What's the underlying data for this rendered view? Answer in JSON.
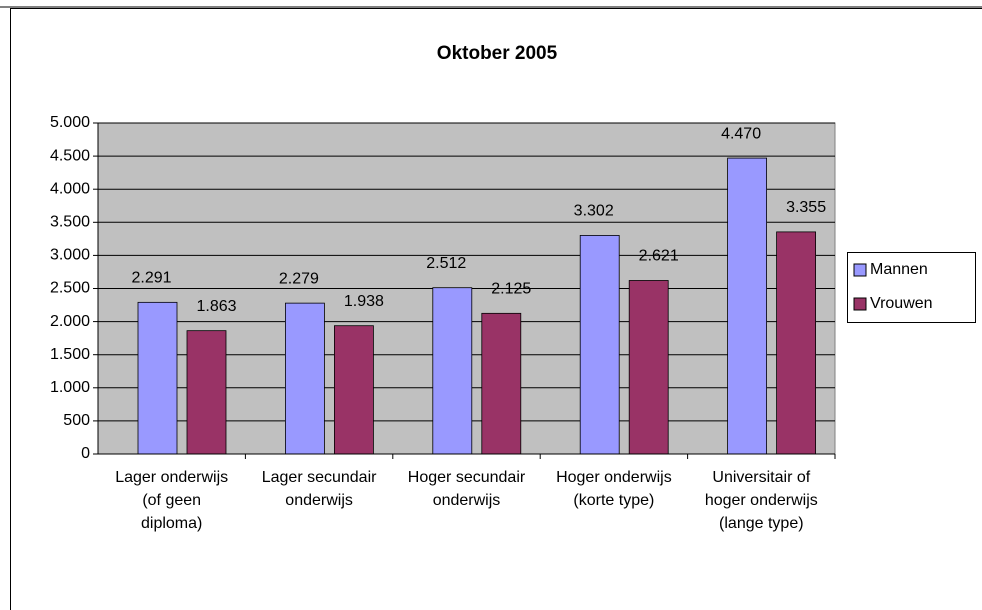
{
  "chart_data": {
    "type": "bar",
    "title": "Oktober 2005",
    "categories": [
      "Lager onderwijs (of geen diploma)",
      "Lager secundair onderwijs",
      "Hoger secundair onderwijs",
      "Hoger onderwijs (korte type)",
      "Universitair of hoger onderwijs (lange type)"
    ],
    "series": [
      {
        "name": "Mannen",
        "color": "#9999ff",
        "values": [
          2291,
          2279,
          2512,
          3302,
          4470
        ],
        "value_labels": [
          "2.291",
          "2.279",
          "2.512",
          "3.302",
          "4.470"
        ]
      },
      {
        "name": "Vrouwen",
        "color": "#993366",
        "values": [
          1863,
          1938,
          2125,
          2621,
          3355
        ],
        "value_labels": [
          "1.863",
          "1.938",
          "2.125",
          "2.621",
          "3.355"
        ]
      }
    ],
    "ylim": [
      0,
      5000
    ],
    "yticks": [
      {
        "value": 0,
        "label": "0"
      },
      {
        "value": 500,
        "label": "500"
      },
      {
        "value": 1000,
        "label": "1.000"
      },
      {
        "value": 1500,
        "label": "1.500"
      },
      {
        "value": 2000,
        "label": "2.000"
      },
      {
        "value": 2500,
        "label": "2.500"
      },
      {
        "value": 3000,
        "label": "3.000"
      },
      {
        "value": 3500,
        "label": "3.500"
      },
      {
        "value": 4000,
        "label": "4.000"
      },
      {
        "value": 4500,
        "label": "4.500"
      },
      {
        "value": 5000,
        "label": "5.000"
      }
    ],
    "grid": true,
    "legend": "right",
    "plot_background": "#c0c0c0"
  }
}
